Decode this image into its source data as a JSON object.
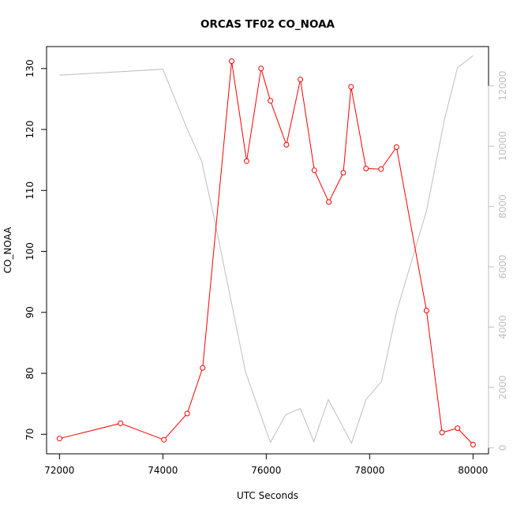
{
  "chart_data": {
    "type": "line",
    "title": "ORCAS TF02 CO_NOAA",
    "xlabel": "UTC Seconds",
    "ylabel": "CO_NOAA",
    "xlim": [
      71750,
      80300
    ],
    "ylim": [
      66.8,
      133.6
    ],
    "y2lim": [
      -200,
      13300
    ],
    "xticks": [
      72000,
      74000,
      76000,
      78000,
      80000
    ],
    "yticks": [
      70,
      80,
      90,
      100,
      110,
      120,
      130
    ],
    "y2ticks": [
      0,
      2000,
      4000,
      6000,
      8000,
      10000,
      12000
    ],
    "grid": false,
    "series": [
      {
        "color": "#ff0000",
        "axis": "left",
        "marker": "open-circle",
        "x": [
          72000,
          73180,
          74020,
          74470,
          74770,
          75330,
          75620,
          75900,
          76080,
          76390,
          76660,
          76930,
          77210,
          77490,
          77640,
          77930,
          78220,
          78520,
          79100,
          79400,
          79700,
          80000
        ],
        "values": [
          69.3,
          71.8,
          69.1,
          73.4,
          80.9,
          131.2,
          114.8,
          130.0,
          124.7,
          117.5,
          128.2,
          113.3,
          108.1,
          112.9,
          127.0,
          113.6,
          113.5,
          117.1,
          90.3,
          70.3,
          71.0,
          68.3
        ]
      },
      {
        "color": "#bebebe",
        "axis": "right",
        "marker": "none",
        "x": [
          72000,
          74000,
          74450,
          74750,
          75000,
          75600,
          76080,
          76380,
          76660,
          76920,
          77200,
          77650,
          77930,
          78230,
          78520,
          79100,
          79450,
          79700,
          80000
        ],
        "values": [
          12350,
          12550,
          10650,
          9500,
          7550,
          2500,
          180,
          1100,
          1300,
          200,
          1600,
          150,
          1600,
          2200,
          4500,
          7850,
          10900,
          12600,
          13000
        ]
      }
    ]
  }
}
